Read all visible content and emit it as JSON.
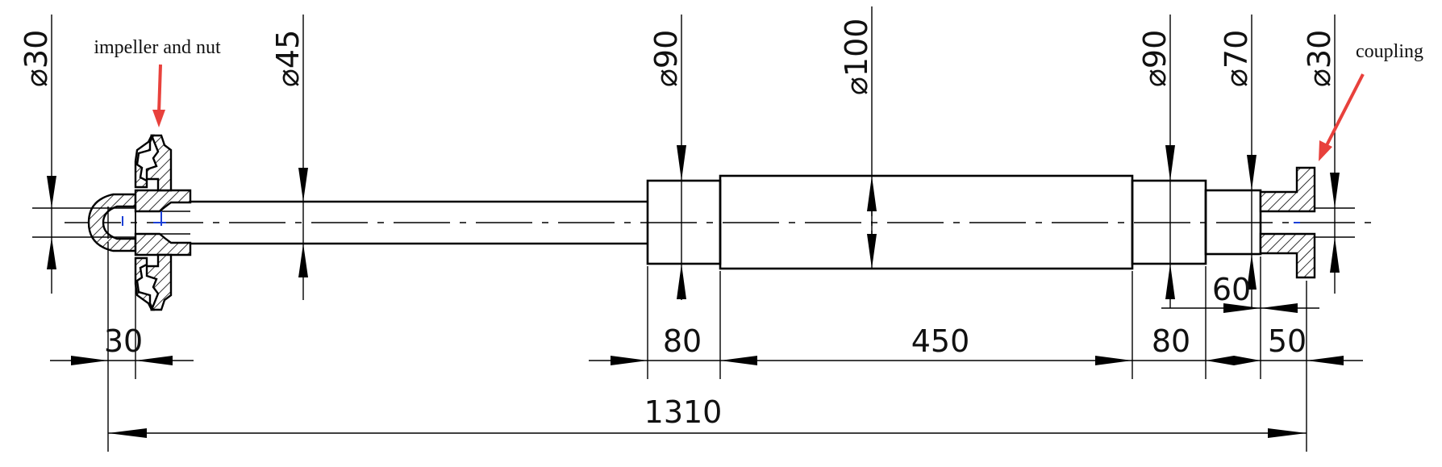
{
  "dimensions": {
    "diameters": {
      "d30_left": "30",
      "d45": "45",
      "d90_left": "90",
      "d100": "100",
      "d90_right": "90",
      "d70": "70",
      "d30_right": "30"
    },
    "lengths": {
      "len_30": "30",
      "len_80_left": "80",
      "len_450": "450",
      "len_80_right": "80",
      "len_60": "60",
      "len_50": "50",
      "total_1310": "1310"
    }
  },
  "annotations": {
    "impeller": "impeller and nut",
    "coupling": "coupling"
  },
  "colors": {
    "line": "#000000",
    "callout_arrow": "#e8413c"
  }
}
